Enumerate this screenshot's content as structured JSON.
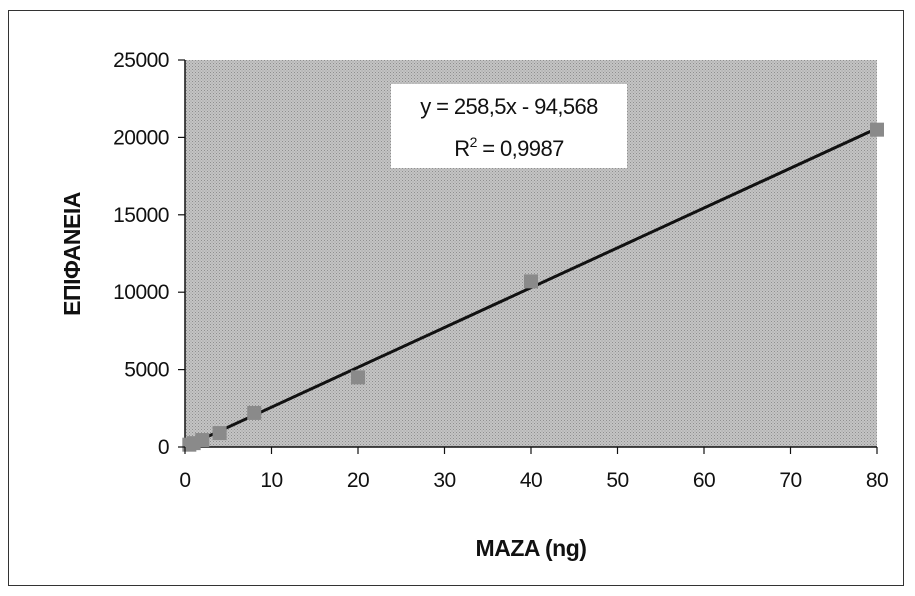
{
  "chart_data": {
    "type": "scatter",
    "xlabel": "MAZA (ng)",
    "ylabel": "ΕΠΙΦΑΝΕΙΑ",
    "xlim": [
      0,
      80
    ],
    "ylim": [
      0,
      25000
    ],
    "x_ticks": [
      "0",
      "10",
      "20",
      "30",
      "40",
      "50",
      "60",
      "70",
      "80"
    ],
    "y_ticks": [
      "0",
      "5000",
      "10000",
      "15000",
      "20000",
      "25000"
    ],
    "grid": false,
    "plot_background": "#b8b8b8",
    "marker_color": "#8a8a8a",
    "line_color": "#111111",
    "series": [
      {
        "x": [
          0.5,
          1,
          2,
          4,
          8,
          20,
          40,
          80
        ],
        "y": [
          150,
          250,
          450,
          900,
          2200,
          4500,
          10700,
          20500
        ]
      }
    ],
    "trendline": {
      "slope": 258.5,
      "intercept": -94.568,
      "equation": "y = 258,5x - 94,568",
      "r2_prefix": "R",
      "r2_sup": "2",
      "r2_value": " = 0,9987"
    }
  }
}
